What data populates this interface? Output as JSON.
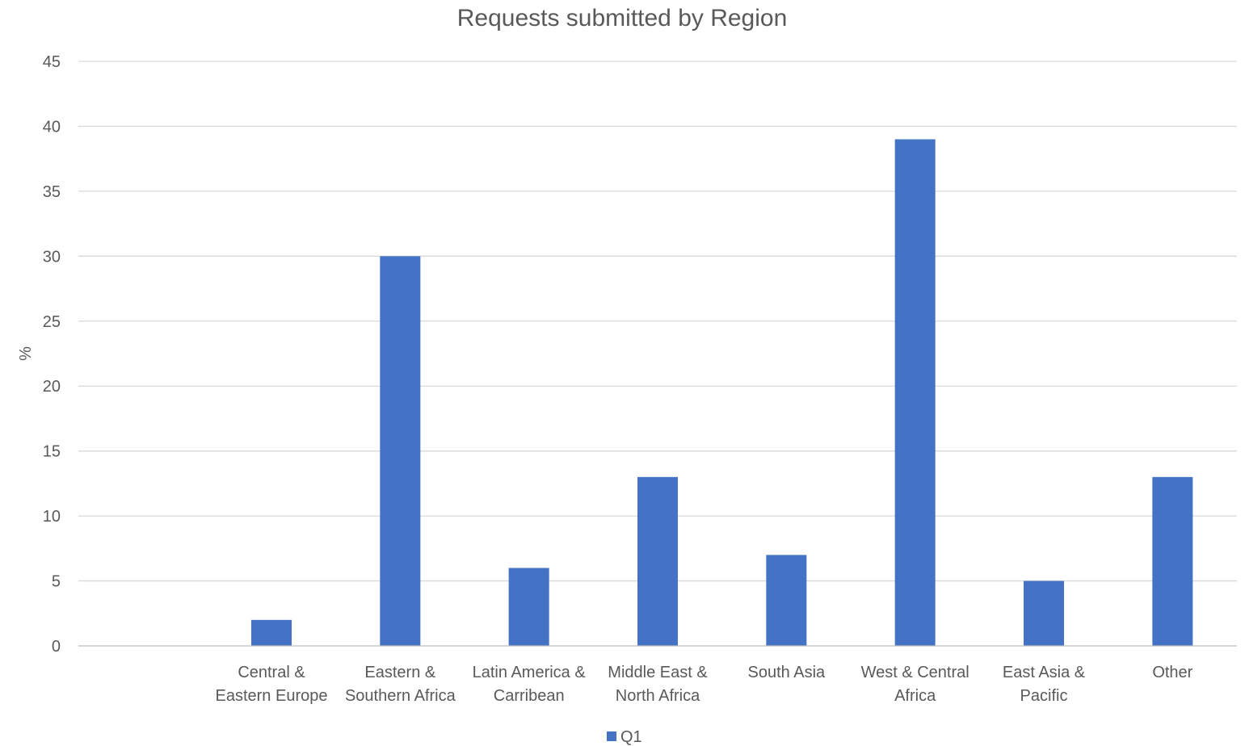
{
  "chart_data": {
    "type": "bar",
    "title": "Requests submitted by Region",
    "xlabel": "",
    "ylabel": "%",
    "ylim": [
      0,
      45
    ],
    "yticks": [
      0,
      5,
      10,
      15,
      20,
      25,
      30,
      35,
      40,
      45
    ],
    "grid": true,
    "legend_position": "bottom",
    "categories": [
      [
        "",
        ""
      ],
      [
        "Central &",
        "Eastern Europe"
      ],
      [
        "Eastern &",
        "Southern Africa"
      ],
      [
        "Latin America &",
        "Carribean"
      ],
      [
        "Middle East &",
        "North Africa"
      ],
      [
        "South Asia",
        ""
      ],
      [
        "West & Central",
        "Africa"
      ],
      [
        "East Asia &",
        "Pacific"
      ],
      [
        "Other",
        ""
      ]
    ],
    "series": [
      {
        "name": "Q1",
        "color": "#4472c4",
        "values": [
          0,
          2,
          30,
          6,
          13,
          7,
          39,
          5,
          13
        ]
      }
    ]
  }
}
